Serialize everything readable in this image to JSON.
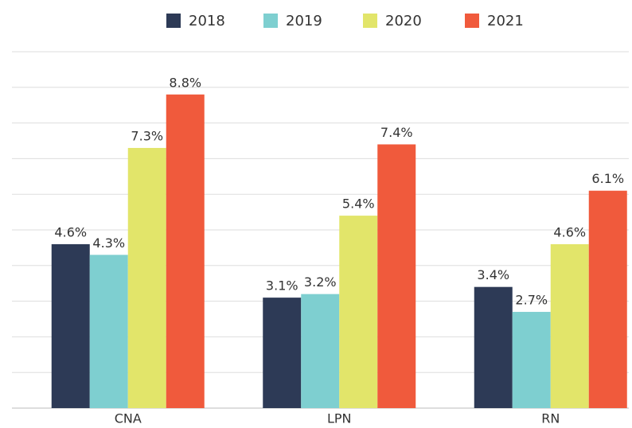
{
  "chart_data": {
    "type": "bar",
    "categories": [
      "CNA",
      "LPN",
      "RN"
    ],
    "series": [
      {
        "name": "2018",
        "color": "#2d3a56",
        "values": [
          4.6,
          3.1,
          3.4
        ],
        "value_labels": [
          "4.6%",
          "3.1%",
          "3.4%"
        ]
      },
      {
        "name": "2019",
        "color": "#7ecfd0",
        "values": [
          4.3,
          3.2,
          2.7
        ],
        "value_labels": [
          "4.3%",
          "3.2%",
          "2.7%"
        ]
      },
      {
        "name": "2020",
        "color": "#e2e56a",
        "values": [
          7.3,
          5.4,
          4.6
        ],
        "value_labels": [
          "7.3%",
          "5.4%",
          "4.6%"
        ]
      },
      {
        "name": "2021",
        "color": "#f05a3c",
        "values": [
          8.8,
          7.4,
          6.1
        ],
        "value_labels": [
          "8.8%",
          "7.4%",
          "6.1%"
        ]
      }
    ],
    "ylim": [
      0,
      10
    ],
    "yticks": [
      0,
      1,
      2,
      3,
      4,
      5,
      6,
      7,
      8,
      9,
      10
    ],
    "grid": true,
    "legend": "top"
  }
}
